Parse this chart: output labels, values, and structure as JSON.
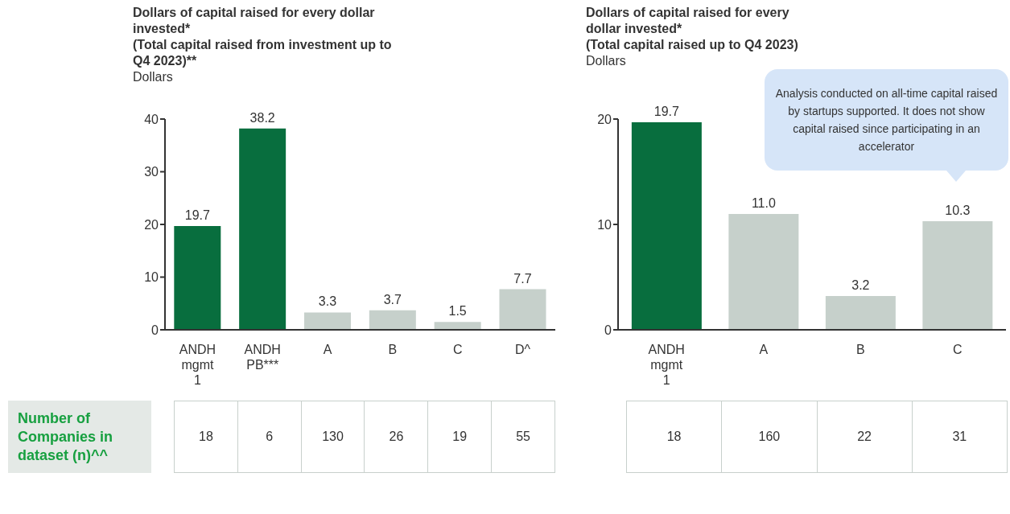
{
  "chart_data": [
    {
      "type": "bar",
      "title": "Dollars of capital raised for every dollar invested*",
      "subtitle": "(Total capital raised from investment up to Q4 2023)**",
      "ylabel": "Dollars",
      "categories": [
        "ANDH mgmt 1",
        "ANDH PB***",
        "A",
        "B",
        "C",
        "D^"
      ],
      "values": [
        19.7,
        38.2,
        3.3,
        3.7,
        1.5,
        7.7
      ],
      "colors": [
        "#086e3e",
        "#086e3e",
        "#c6d0cb",
        "#c6d0cb",
        "#c6d0cb",
        "#c6d0cb"
      ],
      "value_labels": [
        "19.7",
        "38.2",
        "3.3",
        "3.7",
        "1.5",
        "7.7"
      ],
      "ylim": [
        0,
        40
      ],
      "yticks": [
        0,
        10,
        20,
        30,
        40
      ],
      "grid": false,
      "legend": false,
      "annotations": [
        "Number of Companies in dataset (n)^^",
        "18",
        "6",
        "130",
        "26",
        "19",
        "55"
      ]
    },
    {
      "type": "bar",
      "title": "Dollars of capital raised for every dollar invested*",
      "subtitle": "(Total capital raised up to Q4 2023)",
      "ylabel": "Dollars",
      "categories": [
        "ANDH mgmt 1",
        "A",
        "B",
        "C"
      ],
      "values": [
        19.7,
        11.0,
        3.2,
        10.3
      ],
      "colors": [
        "#086e3e",
        "#c6d0cb",
        "#c6d0cb",
        "#c6d0cb"
      ],
      "value_labels": [
        "19.7",
        "11.0",
        "3.2",
        "10.3"
      ],
      "ylim": [
        0,
        20
      ],
      "yticks": [
        0,
        10,
        20
      ],
      "grid": false,
      "legend": false,
      "annotations": [
        "Analysis conducted on all-time capital raised by startups supported. It does not show capital raised since participating in an accelerator",
        "18",
        "160",
        "22",
        "31"
      ]
    }
  ]
}
